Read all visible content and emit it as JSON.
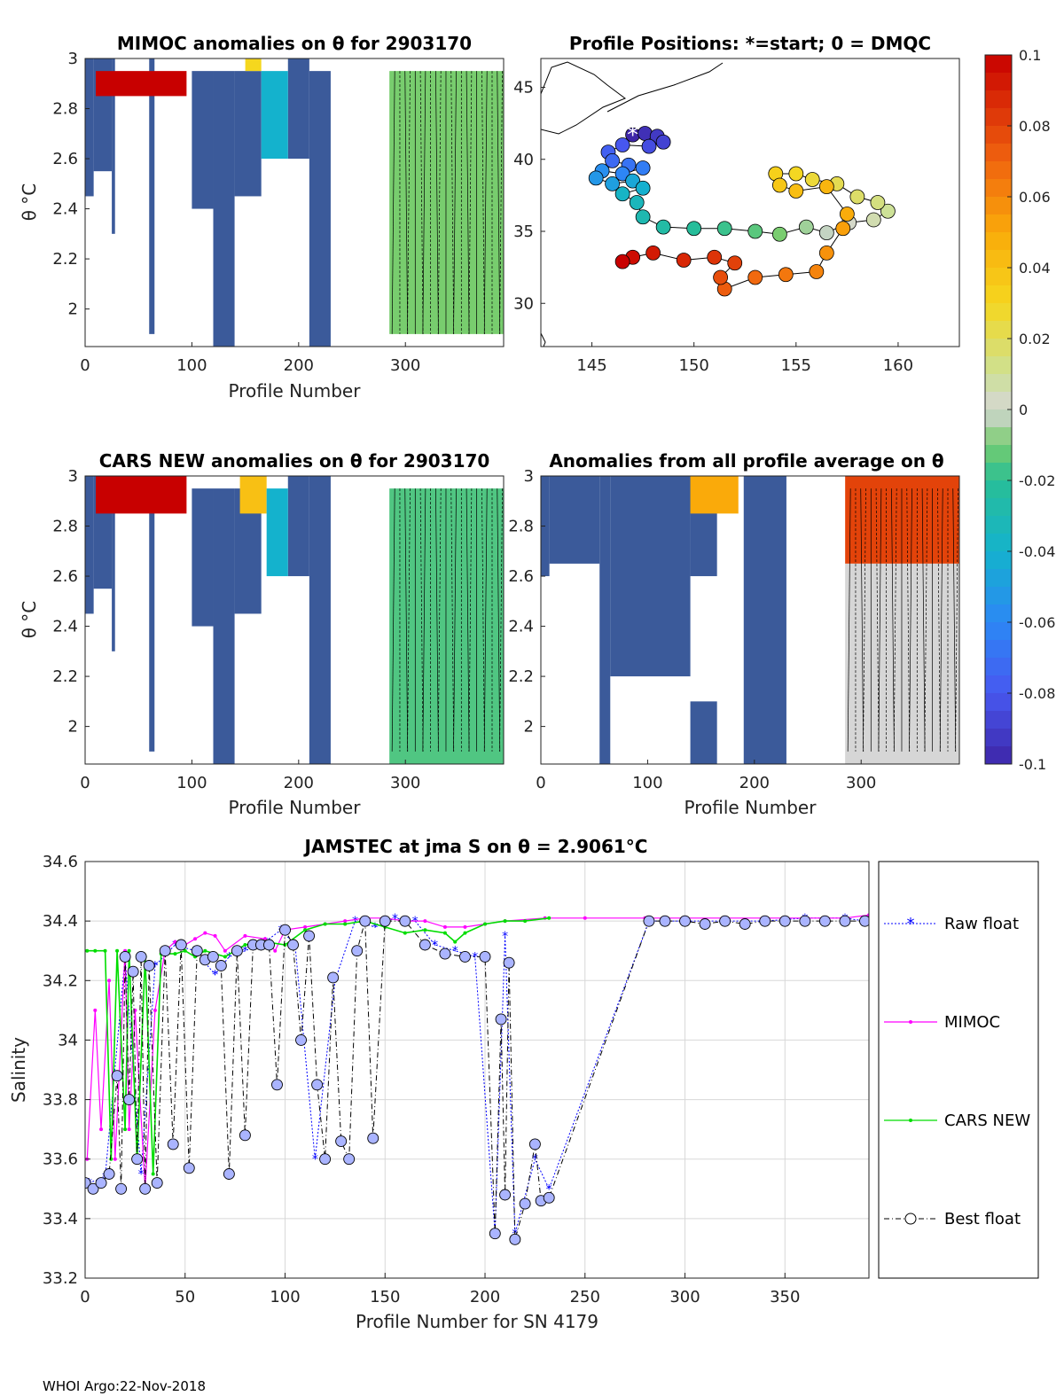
{
  "chart_data": [
    {
      "id": "mimoc",
      "type": "heatmap",
      "title": "MIMOC anomalies on θ  for 2903170",
      "xlabel": "Profile Number",
      "ylabel": "θ °C",
      "xlim": [
        0,
        392
      ],
      "ylim": [
        1.85,
        3.0
      ],
      "xticks": [
        0,
        100,
        200,
        300
      ],
      "yticks": [
        2,
        2.2,
        2.4,
        2.6,
        2.8,
        3
      ],
      "blocks": [
        {
          "x0": 0,
          "x1": 8,
          "y0": 2.45,
          "y1": 3.0,
          "c": -0.1
        },
        {
          "x0": 8,
          "x1": 25,
          "y0": 2.55,
          "y1": 3.0,
          "c": -0.1
        },
        {
          "x0": 25,
          "x1": 28,
          "y0": 2.3,
          "y1": 3.0,
          "c": -0.1
        },
        {
          "x0": 60,
          "x1": 65,
          "y0": 1.9,
          "y1": 3.0,
          "c": -0.1
        },
        {
          "x0": 100,
          "x1": 120,
          "y0": 2.4,
          "y1": 2.95,
          "c": -0.1
        },
        {
          "x0": 120,
          "x1": 140,
          "y0": 1.85,
          "y1": 2.95,
          "c": -0.1
        },
        {
          "x0": 140,
          "x1": 165,
          "y0": 2.45,
          "y1": 2.95,
          "c": -0.1
        },
        {
          "x0": 190,
          "x1": 210,
          "y0": 2.6,
          "y1": 3.0,
          "c": -0.1
        },
        {
          "x0": 210,
          "x1": 230,
          "y0": 1.85,
          "y1": 2.95,
          "c": -0.1
        },
        {
          "x0": 10,
          "x1": 95,
          "y0": 2.85,
          "y1": 2.95,
          "c": 0.1
        },
        {
          "x0": 150,
          "x1": 165,
          "y0": 2.95,
          "y1": 3.0,
          "c": 0.03
        },
        {
          "x0": 165,
          "x1": 190,
          "y0": 2.6,
          "y1": 2.95,
          "c": -0.04
        },
        {
          "x0": 285,
          "x1": 392,
          "y0": 1.9,
          "y1": 2.95,
          "c": -0.01
        }
      ]
    },
    {
      "id": "positions",
      "type": "scatter",
      "title": "Profile Positions: *=start; 0 = DMQC",
      "xlim": [
        142.5,
        163
      ],
      "ylim": [
        27,
        47
      ],
      "xticks": [
        145,
        150,
        155,
        160
      ],
      "yticks": [
        30,
        35,
        40,
        45
      ],
      "track": [
        {
          "lon": 147.0,
          "lat": 41.7
        },
        {
          "lon": 147.6,
          "lat": 41.8
        },
        {
          "lon": 148.2,
          "lat": 41.6
        },
        {
          "lon": 148.5,
          "lat": 41.2
        },
        {
          "lon": 147.8,
          "lat": 40.9
        },
        {
          "lon": 146.5,
          "lat": 41.0
        },
        {
          "lon": 145.8,
          "lat": 40.5
        },
        {
          "lon": 146.0,
          "lat": 39.9
        },
        {
          "lon": 146.8,
          "lat": 39.6
        },
        {
          "lon": 147.5,
          "lat": 39.4
        },
        {
          "lon": 146.5,
          "lat": 39.0
        },
        {
          "lon": 145.5,
          "lat": 39.2
        },
        {
          "lon": 145.2,
          "lat": 38.7
        },
        {
          "lon": 146.0,
          "lat": 38.3
        },
        {
          "lon": 147.0,
          "lat": 38.5
        },
        {
          "lon": 147.5,
          "lat": 38.0
        },
        {
          "lon": 146.5,
          "lat": 37.6
        },
        {
          "lon": 147.2,
          "lat": 37.0
        },
        {
          "lon": 147.5,
          "lat": 36.0
        },
        {
          "lon": 148.5,
          "lat": 35.3
        },
        {
          "lon": 150.0,
          "lat": 35.2
        },
        {
          "lon": 151.5,
          "lat": 35.2
        },
        {
          "lon": 153.0,
          "lat": 35.0
        },
        {
          "lon": 154.2,
          "lat": 34.8
        },
        {
          "lon": 155.5,
          "lat": 35.3
        },
        {
          "lon": 156.5,
          "lat": 34.9
        },
        {
          "lon": 157.6,
          "lat": 35.6
        },
        {
          "lon": 158.8,
          "lat": 35.8
        },
        {
          "lon": 159.5,
          "lat": 36.4
        },
        {
          "lon": 159.0,
          "lat": 37.0
        },
        {
          "lon": 158.0,
          "lat": 37.4
        },
        {
          "lon": 157.0,
          "lat": 38.3
        },
        {
          "lon": 155.8,
          "lat": 38.6
        },
        {
          "lon": 155.0,
          "lat": 39.0
        },
        {
          "lon": 154.0,
          "lat": 39.0
        },
        {
          "lon": 154.2,
          "lat": 38.2
        },
        {
          "lon": 155.0,
          "lat": 37.8
        },
        {
          "lon": 156.5,
          "lat": 38.1
        },
        {
          "lon": 157.5,
          "lat": 36.2
        },
        {
          "lon": 157.3,
          "lat": 35.2
        },
        {
          "lon": 156.5,
          "lat": 33.5
        },
        {
          "lon": 156.0,
          "lat": 32.2
        },
        {
          "lon": 154.5,
          "lat": 32.0
        },
        {
          "lon": 153.0,
          "lat": 31.8
        },
        {
          "lon": 151.5,
          "lat": 31.0
        },
        {
          "lon": 151.3,
          "lat": 31.8
        },
        {
          "lon": 152.0,
          "lat": 32.8
        },
        {
          "lon": 151.0,
          "lat": 33.2
        },
        {
          "lon": 149.5,
          "lat": 33.0
        },
        {
          "lon": 148.0,
          "lat": 33.5
        },
        {
          "lon": 147.0,
          "lat": 33.2
        },
        {
          "lon": 146.5,
          "lat": 32.9
        }
      ]
    },
    {
      "id": "cars",
      "type": "heatmap",
      "title": "CARS NEW anomalies on θ for 2903170",
      "xlabel": "Profile Number",
      "ylabel": "θ °C",
      "xlim": [
        0,
        392
      ],
      "ylim": [
        1.85,
        3.0
      ],
      "xticks": [
        0,
        100,
        200,
        300
      ],
      "yticks": [
        2,
        2.2,
        2.4,
        2.6,
        2.8,
        3
      ],
      "blocks": [
        {
          "x0": 0,
          "x1": 8,
          "y0": 2.45,
          "y1": 3.0,
          "c": -0.1
        },
        {
          "x0": 8,
          "x1": 25,
          "y0": 2.55,
          "y1": 3.0,
          "c": -0.1
        },
        {
          "x0": 25,
          "x1": 28,
          "y0": 2.3,
          "y1": 3.0,
          "c": -0.1
        },
        {
          "x0": 60,
          "x1": 65,
          "y0": 1.9,
          "y1": 3.0,
          "c": -0.1
        },
        {
          "x0": 100,
          "x1": 120,
          "y0": 2.4,
          "y1": 2.95,
          "c": -0.1
        },
        {
          "x0": 120,
          "x1": 140,
          "y0": 1.85,
          "y1": 2.95,
          "c": -0.1
        },
        {
          "x0": 140,
          "x1": 165,
          "y0": 2.45,
          "y1": 2.95,
          "c": -0.1
        },
        {
          "x0": 190,
          "x1": 210,
          "y0": 2.6,
          "y1": 3.0,
          "c": -0.1
        },
        {
          "x0": 210,
          "x1": 230,
          "y0": 1.85,
          "y1": 3.0,
          "c": -0.1
        },
        {
          "x0": 10,
          "x1": 95,
          "y0": 2.85,
          "y1": 3.0,
          "c": 0.1
        },
        {
          "x0": 145,
          "x1": 170,
          "y0": 2.85,
          "y1": 3.0,
          "c": 0.04
        },
        {
          "x0": 170,
          "x1": 190,
          "y0": 2.6,
          "y1": 2.95,
          "c": -0.04
        },
        {
          "x0": 285,
          "x1": 392,
          "y0": 1.85,
          "y1": 2.95,
          "c": -0.015
        }
      ]
    },
    {
      "id": "average",
      "type": "heatmap",
      "title": "Anomalies from all profile average on θ",
      "xlabel": "Profile Number",
      "xlim": [
        0,
        392
      ],
      "ylim": [
        1.85,
        3.0
      ],
      "xticks": [
        0,
        100,
        200,
        300
      ],
      "yticks": [
        2,
        2.2,
        2.4,
        2.6,
        2.8,
        3
      ],
      "blocks": [
        {
          "x0": 0,
          "x1": 8,
          "y0": 2.6,
          "y1": 3.0,
          "c": -0.1
        },
        {
          "x0": 8,
          "x1": 55,
          "y0": 2.65,
          "y1": 3.0,
          "c": -0.1
        },
        {
          "x0": 55,
          "x1": 65,
          "y0": 1.85,
          "y1": 3.0,
          "c": -0.1
        },
        {
          "x0": 65,
          "x1": 140,
          "y0": 2.2,
          "y1": 3.0,
          "c": -0.1
        },
        {
          "x0": 140,
          "x1": 165,
          "y0": 2.6,
          "y1": 3.0,
          "c": -0.1
        },
        {
          "x0": 140,
          "x1": 165,
          "y0": 1.85,
          "y1": 2.1,
          "c": -0.1
        },
        {
          "x0": 190,
          "x1": 230,
          "y0": 1.85,
          "y1": 3.0,
          "c": -0.1
        },
        {
          "x0": 140,
          "x1": 185,
          "y0": 2.85,
          "y1": 3.0,
          "c": 0.05
        },
        {
          "x0": 285,
          "x1": 392,
          "y0": 2.65,
          "y1": 3.0,
          "c": 0.08
        },
        {
          "x0": 285,
          "x1": 392,
          "y0": 1.85,
          "y1": 2.65,
          "c": 0.0
        }
      ]
    },
    {
      "id": "jamstec",
      "type": "line",
      "title": "JAMSTEC at jma S on θ = 2.9061°C",
      "xlabel": "Profile Number for SN 4179",
      "ylabel": "Salinity",
      "xlim": [
        0,
        392
      ],
      "ylim": [
        33.2,
        34.6
      ],
      "xticks": [
        0,
        50,
        100,
        150,
        200,
        250,
        300,
        350
      ],
      "yticks": [
        33.2,
        33.4,
        33.6,
        33.8,
        34,
        34.2,
        34.4,
        34.6
      ],
      "series": [
        {
          "name": "Raw float",
          "color": "#0000ff",
          "x": [
            2,
            10,
            20,
            28,
            35,
            45,
            55,
            65,
            72,
            80,
            90,
            98,
            105,
            115,
            125,
            135,
            145,
            155,
            165,
            175,
            185,
            195,
            205,
            210,
            215,
            225,
            232,
            282,
            300,
            320,
            340,
            360,
            380,
            390
          ],
          "y": [
            33.52,
            33.54,
            34.28,
            33.55,
            34.25,
            34.32,
            34.3,
            34.22,
            34.28,
            34.3,
            34.33,
            34.37,
            34.32,
            33.6,
            34.2,
            34.4,
            34.38,
            34.41,
            34.4,
            34.32,
            34.3,
            34.28,
            33.35,
            34.35,
            33.35,
            33.6,
            33.5,
            34.4,
            34.4,
            34.4,
            34.4,
            34.41,
            34.41,
            34.4
          ]
        },
        {
          "name": "MIMOC",
          "color": "#ff00ff",
          "x": [
            1,
            5,
            8,
            12,
            15,
            20,
            22,
            25,
            30,
            35,
            40,
            45,
            50,
            55,
            60,
            65,
            70,
            80,
            90,
            95,
            100,
            110,
            120,
            130,
            140,
            150,
            160,
            170,
            180,
            190,
            200,
            210,
            230,
            250,
            280,
            300,
            320,
            340,
            360,
            380,
            392
          ],
          "y": [
            33.6,
            34.1,
            33.7,
            34.2,
            33.6,
            34.3,
            33.7,
            34.1,
            33.5,
            34.1,
            34.3,
            34.33,
            34.32,
            34.34,
            34.36,
            34.35,
            34.3,
            34.35,
            34.34,
            34.3,
            34.37,
            34.38,
            34.39,
            34.4,
            34.41,
            34.41,
            34.4,
            34.4,
            34.38,
            34.38,
            34.39,
            34.4,
            34.41,
            34.41,
            34.41,
            34.41,
            34.41,
            34.41,
            34.41,
            34.41,
            34.42
          ]
        },
        {
          "name": "CARS NEW",
          "color": "#00dd00",
          "x": [
            1,
            5,
            10,
            13,
            16,
            20,
            22,
            26,
            30,
            34,
            38,
            45,
            50,
            55,
            60,
            65,
            70,
            80,
            90,
            100,
            110,
            120,
            130,
            140,
            150,
            160,
            170,
            180,
            185,
            190,
            200,
            210,
            220,
            232
          ],
          "y": [
            34.3,
            34.3,
            34.3,
            33.6,
            34.3,
            33.7,
            34.3,
            33.6,
            34.28,
            33.55,
            34.29,
            34.29,
            34.3,
            34.28,
            34.3,
            34.29,
            34.28,
            34.32,
            34.33,
            34.32,
            34.37,
            34.39,
            34.39,
            34.4,
            34.38,
            34.36,
            34.37,
            34.36,
            34.33,
            34.36,
            34.39,
            34.4,
            34.4,
            34.41
          ]
        },
        {
          "name": "Best float",
          "color": "#000000",
          "x": [
            0,
            4,
            8,
            12,
            16,
            18,
            20,
            22,
            24,
            26,
            28,
            30,
            32,
            36,
            40,
            44,
            48,
            52,
            56,
            60,
            64,
            68,
            72,
            76,
            80,
            84,
            88,
            92,
            96,
            100,
            104,
            108,
            112,
            116,
            120,
            124,
            128,
            132,
            136,
            140,
            144,
            150,
            160,
            170,
            180,
            190,
            200,
            205,
            208,
            210,
            212,
            215,
            220,
            225,
            228,
            232,
            282,
            290,
            300,
            310,
            320,
            330,
            340,
            350,
            360,
            370,
            380,
            390
          ],
          "y": [
            33.52,
            33.5,
            33.52,
            33.55,
            33.88,
            33.5,
            34.28,
            33.8,
            34.23,
            33.6,
            34.28,
            33.5,
            34.25,
            33.52,
            34.3,
            33.65,
            34.32,
            33.57,
            34.3,
            34.27,
            34.28,
            34.25,
            33.55,
            34.3,
            33.68,
            34.32,
            34.32,
            34.32,
            33.85,
            34.37,
            34.32,
            34.0,
            34.35,
            33.85,
            33.6,
            34.21,
            33.66,
            33.6,
            34.3,
            34.4,
            33.67,
            34.4,
            34.4,
            34.32,
            34.29,
            34.28,
            34.28,
            33.35,
            34.07,
            33.48,
            34.26,
            33.33,
            33.45,
            33.65,
            33.46,
            33.47,
            34.4,
            34.4,
            34.4,
            34.39,
            34.4,
            34.39,
            34.4,
            34.4,
            34.4,
            34.4,
            34.4,
            34.4
          ]
        }
      ]
    }
  ],
  "colorbar": {
    "min": -0.1,
    "max": 0.1,
    "ticks": [
      "0.1",
      "0.08",
      "0.06",
      "0.04",
      "0.02",
      "0",
      "-0.02",
      "-0.04",
      "-0.06",
      "-0.08",
      "-0.1"
    ]
  },
  "footer": "WHOI Argo:22-Nov-2018"
}
